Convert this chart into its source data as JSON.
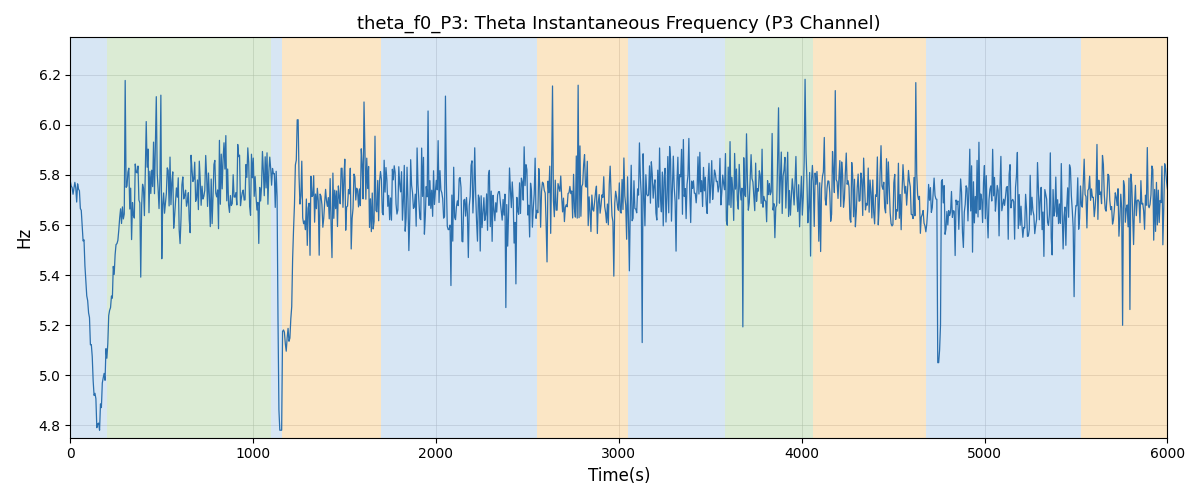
{
  "title": "theta_f0_P3: Theta Instantaneous Frequency (P3 Channel)",
  "xlabel": "Time(s)",
  "ylabel": "Hz",
  "xlim": [
    0,
    6000
  ],
  "ylim": [
    4.75,
    6.35
  ],
  "yticks": [
    4.8,
    5.0,
    5.2,
    5.4,
    5.6,
    5.8,
    6.0,
    6.2
  ],
  "xticks": [
    0,
    1000,
    2000,
    3000,
    4000,
    5000,
    6000
  ],
  "line_color": "#2b6fad",
  "line_width": 0.9,
  "background_color": "#ffffff",
  "grid_color": "#b0b0b0",
  "colored_bands": [
    [
      0,
      200,
      "#a8c8e8"
    ],
    [
      200,
      1100,
      "#b0d4a0"
    ],
    [
      1100,
      1160,
      "#a8c8e8"
    ],
    [
      1160,
      1700,
      "#f8c880"
    ],
    [
      1700,
      2550,
      "#a8c8e8"
    ],
    [
      2550,
      3050,
      "#f8c880"
    ],
    [
      3050,
      3470,
      "#a8c8e8"
    ],
    [
      3470,
      3580,
      "#a8c8e8"
    ],
    [
      3580,
      4060,
      "#b0d4a0"
    ],
    [
      4060,
      4680,
      "#f8c880"
    ],
    [
      4680,
      5180,
      "#a8c8e8"
    ],
    [
      5180,
      5530,
      "#a8c8e8"
    ],
    [
      5530,
      6000,
      "#f8c880"
    ]
  ],
  "band_alpha": 0.45,
  "seed": 12345,
  "n_points": 1200,
  "base_freq": 5.72,
  "noise_std": 0.09,
  "spike_noise_std": 0.25,
  "title_fontsize": 13
}
